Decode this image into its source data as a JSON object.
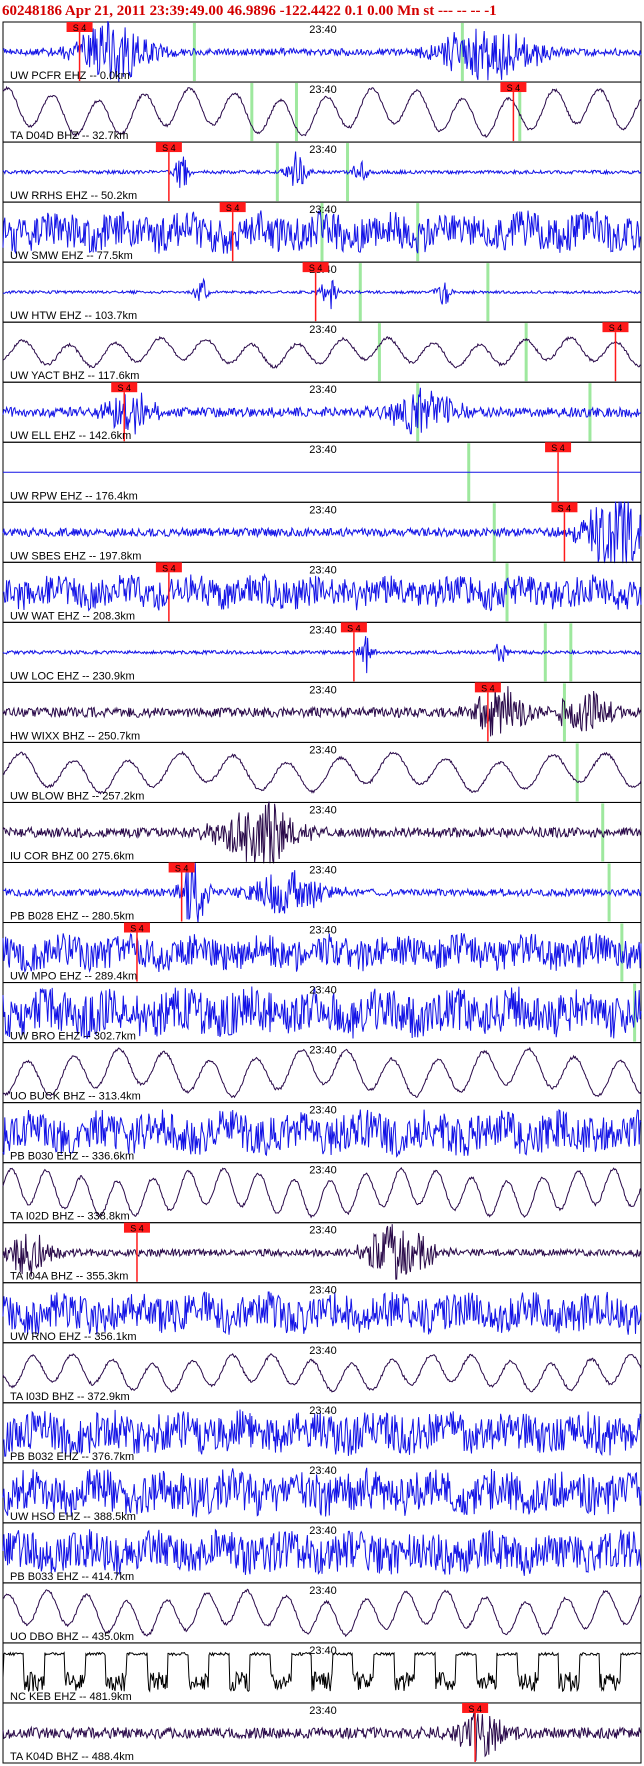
{
  "header": {
    "text": "60248186  Apr 21, 2011 23:39:49.00   46.9896 -122.4422  0.1 0.00 Mn st --- -- --   -1"
  },
  "chart_data": {
    "type": "line",
    "time_marker_label": "23:40",
    "pick_label": "S 4",
    "colors": {
      "blue": "#1414e6",
      "dark": "#2a0a4a",
      "black": "#000000",
      "marker": "#9ee89e",
      "pick_bg": "#ff1a1a",
      "header": "#d40000"
    },
    "traces": [
      {
        "label": "UW PCFR EHZ -- 0.0km",
        "color": "blue",
        "style": "burst",
        "amp": 0.25,
        "bursts": [
          {
            "at": 0.17,
            "w": 0.06,
            "a": 2.2
          },
          {
            "at": 0.76,
            "w": 0.08,
            "a": 2.0
          }
        ],
        "pick": {
          "at": 0.12,
          "label": "S 4"
        },
        "markers": [
          0.3,
          0.72
        ]
      },
      {
        "label": "TA D04D BHZ -- 32.7km",
        "color": "dark",
        "style": "wave",
        "amp": 0.9,
        "pick": {
          "at": 0.8,
          "label": "S 4"
        },
        "markers": [
          0.39,
          0.46,
          0.81
        ]
      },
      {
        "label": "UW RRHS EHZ -- 50.2km",
        "color": "blue",
        "style": "burst",
        "amp": 0.12,
        "bursts": [
          {
            "at": 0.28,
            "w": 0.01,
            "a": 1.5
          },
          {
            "at": 0.46,
            "w": 0.015,
            "a": 1.6
          },
          {
            "at": 0.56,
            "w": 0.01,
            "a": 1.0
          }
        ],
        "pick": {
          "at": 0.26,
          "label": "S 4"
        },
        "markers": [
          0.43,
          0.54
        ]
      },
      {
        "label": "UW SMW EHZ -- 77.5km",
        "color": "blue",
        "style": "noise",
        "amp": 0.8,
        "pick": {
          "at": 0.36,
          "label": "S 4"
        },
        "markers": [
          0.5,
          0.65
        ]
      },
      {
        "label": "UW HTW EHZ -- 103.7km",
        "color": "blue",
        "style": "burst",
        "amp": 0.1,
        "bursts": [
          {
            "at": 0.31,
            "w": 0.01,
            "a": 1.0
          },
          {
            "at": 0.51,
            "w": 0.012,
            "a": 1.5
          },
          {
            "at": 0.69,
            "w": 0.012,
            "a": 1.0
          }
        ],
        "pick": {
          "at": 0.49,
          "label": "S 4"
        },
        "markers": [
          0.56,
          0.76
        ]
      },
      {
        "label": "UW YACT BHZ -- 117.6km",
        "color": "dark",
        "style": "wave",
        "amp": 0.55,
        "pick": {
          "at": 0.96,
          "label": "S 4"
        },
        "markers": [
          0.59,
          0.82
        ]
      },
      {
        "label": "UW ELL EHZ -- 142.6km",
        "color": "blue",
        "style": "burst",
        "amp": 0.35,
        "bursts": [
          {
            "at": 0.66,
            "w": 0.05,
            "a": 1.8
          },
          {
            "at": 0.2,
            "w": 0.04,
            "a": 1.5
          }
        ],
        "pick": {
          "at": 0.19,
          "label": "S 4"
        },
        "markers": [
          0.65,
          0.92
        ]
      },
      {
        "label": "UW RPW EHZ -- 176.4km",
        "color": "blue",
        "style": "flat",
        "amp": 0.0,
        "pick": {
          "at": 0.87,
          "label": "S 4"
        },
        "markers": [
          0.73
        ]
      },
      {
        "label": "UW SBES EHZ -- 197.8km",
        "color": "blue",
        "style": "burst",
        "amp": 0.3,
        "bursts": [
          {
            "at": 0.96,
            "w": 0.05,
            "a": 3.0
          }
        ],
        "pick": {
          "at": 0.88,
          "label": "S 4"
        },
        "markers": [
          0.77
        ]
      },
      {
        "label": "UW WAT EHZ -- 208.3km",
        "color": "blue",
        "style": "noise",
        "amp": 0.65,
        "pick": {
          "at": 0.26,
          "label": "S 4"
        },
        "markers": [
          0.79
        ]
      },
      {
        "label": "UW LOC EHZ -- 230.9km",
        "color": "blue",
        "style": "burst",
        "amp": 0.12,
        "bursts": [
          {
            "at": 0.57,
            "w": 0.01,
            "a": 1.5
          },
          {
            "at": 0.78,
            "w": 0.01,
            "a": 1.0
          }
        ],
        "pick": {
          "at": 0.55,
          "label": "S 4"
        },
        "markers": [
          0.85,
          0.89
        ]
      },
      {
        "label": "HW WIXX BHZ -- 250.7km",
        "color": "dark",
        "style": "burst",
        "amp": 0.35,
        "bursts": [
          {
            "at": 0.78,
            "w": 0.04,
            "a": 2.0
          },
          {
            "at": 0.91,
            "w": 0.04,
            "a": 1.8
          }
        ],
        "pick": {
          "at": 0.76,
          "label": "S 4"
        },
        "markers": [
          0.88
        ]
      },
      {
        "label": "UW BLOW BHZ -- 257.2km",
        "color": "dark",
        "style": "wave",
        "amp": 0.75,
        "pick": null,
        "markers": [
          0.9
        ]
      },
      {
        "label": "IU COR BHZ 00 275.6km",
        "color": "dark",
        "style": "burst",
        "amp": 0.35,
        "bursts": [
          {
            "at": 0.4,
            "w": 0.06,
            "a": 2.5
          }
        ],
        "pick": null,
        "markers": [
          0.94
        ]
      },
      {
        "label": "PB B028 EHZ -- 280.5km",
        "color": "blue",
        "style": "burst",
        "amp": 0.25,
        "bursts": [
          {
            "at": 0.3,
            "w": 0.02,
            "a": 2.5
          },
          {
            "at": 0.45,
            "w": 0.06,
            "a": 1.5
          }
        ],
        "pick": {
          "at": 0.28,
          "label": "S 4"
        },
        "markers": [
          0.95
        ]
      },
      {
        "label": "UW MPO EHZ -- 289.4km",
        "color": "blue",
        "style": "noise",
        "amp": 0.7,
        "pick": {
          "at": 0.21,
          "label": "S 4"
        },
        "markers": [
          0.97
        ]
      },
      {
        "label": "UW BRO EHZ -- 302.7km",
        "color": "blue",
        "style": "noise",
        "amp": 0.95,
        "pick": null,
        "markers": [
          0.99
        ]
      },
      {
        "label": "UO BUCK BHZ -- 313.4km",
        "color": "dark",
        "style": "wave",
        "amp": 0.9,
        "pick": null,
        "markers": []
      },
      {
        "label": "PB B030 EHZ -- 336.6km",
        "color": "blue",
        "style": "noise",
        "amp": 0.85,
        "pick": null,
        "markers": []
      },
      {
        "label": "TA I02D BHZ -- 338.8km",
        "color": "dark",
        "style": "wave",
        "amp": 0.9,
        "pick": null,
        "markers": []
      },
      {
        "label": "TA I04A BHZ -- 355.3km",
        "color": "dark",
        "style": "burst",
        "amp": 0.25,
        "bursts": [
          {
            "at": 0.62,
            "w": 0.05,
            "a": 2.2
          },
          {
            "at": 0.04,
            "w": 0.04,
            "a": 1.5
          }
        ],
        "pick": {
          "at": 0.21,
          "label": "S 4"
        },
        "markers": []
      },
      {
        "label": "UW RNO EHZ -- 356.1km",
        "color": "blue",
        "style": "noise",
        "amp": 0.8,
        "pick": null,
        "markers": []
      },
      {
        "label": "TA I03D BHZ -- 372.9km",
        "color": "dark",
        "style": "wave",
        "amp": 0.7,
        "pick": null,
        "markers": []
      },
      {
        "label": "PB B032 EHZ -- 376.7km",
        "color": "blue",
        "style": "noise",
        "amp": 0.85,
        "pick": null,
        "markers": []
      },
      {
        "label": "UW HSO EHZ -- 388.5km",
        "color": "blue",
        "style": "noise",
        "amp": 0.9,
        "pick": null,
        "markers": []
      },
      {
        "label": "PB B033 EHZ -- 414.7km",
        "color": "blue",
        "style": "noise",
        "amp": 0.85,
        "pick": null,
        "markers": []
      },
      {
        "label": "UO DBO BHZ -- 435.0km",
        "color": "dark",
        "style": "wave",
        "amp": 0.85,
        "pick": null,
        "markers": []
      },
      {
        "label": "NC KEB EHZ -- 481.9km",
        "color": "black",
        "style": "square",
        "amp": 0.9,
        "pick": null,
        "markers": []
      },
      {
        "label": "TA K04D BHZ -- 488.4km",
        "color": "dark",
        "style": "burst",
        "amp": 0.4,
        "bursts": [
          {
            "at": 0.75,
            "w": 0.04,
            "a": 1.8
          }
        ],
        "pick": {
          "at": 0.74,
          "label": "S 4"
        },
        "markers": []
      }
    ]
  }
}
